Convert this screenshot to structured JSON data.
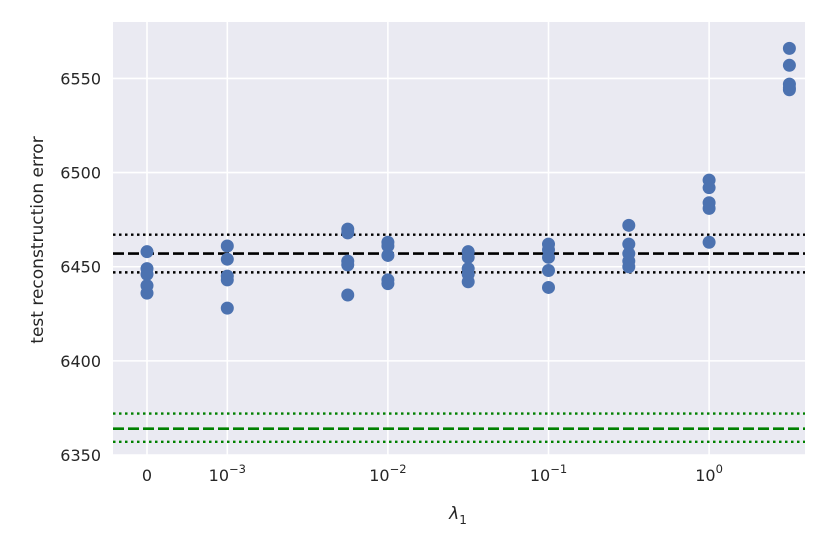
{
  "chart_data": {
    "type": "scatter",
    "title": "",
    "xlabel_base": "λ",
    "xlabel_sub": "1",
    "ylabel": "test reconstruction error",
    "ylim": [
      6350,
      6580
    ],
    "yticks": [
      6350,
      6400,
      6450,
      6500,
      6550
    ],
    "xticks": [
      {
        "pos": 0,
        "base": "0",
        "exp": ""
      },
      {
        "pos": 1,
        "base": "10",
        "exp": "−3"
      },
      {
        "pos": 3,
        "base": "10",
        "exp": "−2"
      },
      {
        "pos": 5,
        "base": "10",
        "exp": "−1"
      },
      {
        "pos": 7,
        "base": "10",
        "exp": "0"
      }
    ],
    "grid": true,
    "background": "#eaeaf2",
    "marker_color": "#4c72b0",
    "groups": [
      {
        "x": 0,
        "values": [
          6458,
          6449,
          6446,
          6440,
          6436
        ]
      },
      {
        "x": 1,
        "values": [
          6461,
          6454,
          6445,
          6443,
          6428
        ]
      },
      {
        "x": 2.5,
        "values": [
          6470,
          6468,
          6453,
          6451,
          6435
        ]
      },
      {
        "x": 3,
        "values": [
          6463,
          6461,
          6456,
          6443,
          6441
        ]
      },
      {
        "x": 4,
        "values": [
          6458,
          6455,
          6449,
          6446,
          6442
        ]
      },
      {
        "x": 5,
        "values": [
          6462,
          6459,
          6455,
          6448,
          6439
        ]
      },
      {
        "x": 6,
        "values": [
          6472,
          6462,
          6457,
          6453,
          6450
        ]
      },
      {
        "x": 7,
        "values": [
          6496,
          6492,
          6484,
          6481,
          6463
        ]
      },
      {
        "x": 8,
        "values": [
          6566,
          6557,
          6547,
          6545,
          6544
        ]
      }
    ],
    "reference_lines": [
      {
        "y": 6457,
        "style": "dashed",
        "color": "#000000"
      },
      {
        "y": 6467,
        "style": "dotted",
        "color": "#000000"
      },
      {
        "y": 6447,
        "style": "dotted",
        "color": "#000000"
      },
      {
        "y": 6364,
        "style": "dashed",
        "color": "#008000"
      },
      {
        "y": 6372,
        "style": "dotted",
        "color": "#008000"
      },
      {
        "y": 6357,
        "style": "dotted",
        "color": "#008000"
      }
    ]
  }
}
